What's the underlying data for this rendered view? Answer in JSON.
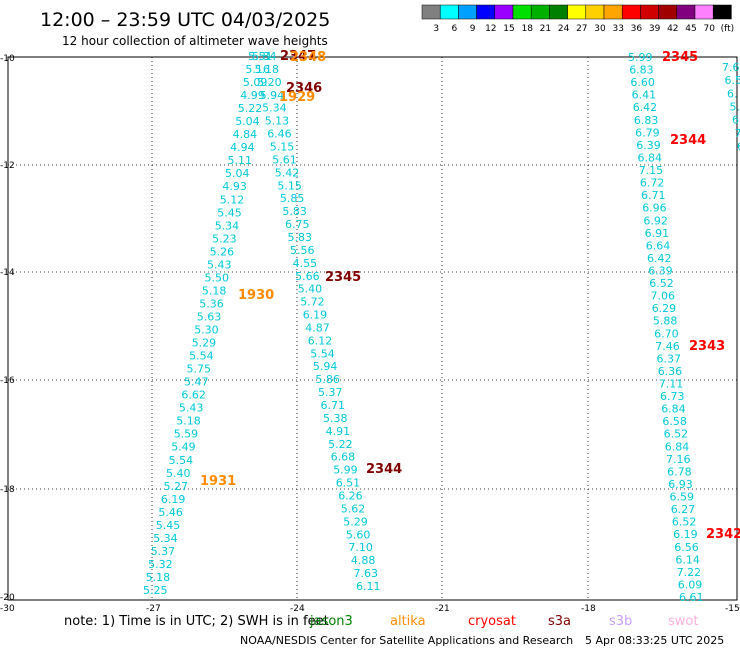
{
  "header": {
    "title": "12:00 – 23:59 UTC 04/03/2025",
    "subtitle": "12 hour collection of altimeter wave heights"
  },
  "color_scale": {
    "labels": [
      "3",
      "6",
      "9",
      "12",
      "15",
      "18",
      "21",
      "24",
      "27",
      "30",
      "33",
      "36",
      "39",
      "42",
      "45",
      "70",
      "(ft)"
    ],
    "colors": [
      "#808080",
      "#00ffff",
      "#00a0ff",
      "#0000ff",
      "#9900ff",
      "#00e000",
      "#00b000",
      "#008000",
      "#ffff00",
      "#ffd000",
      "#ffa500",
      "#ff0000",
      "#d00000",
      "#a00000",
      "#800080",
      "#ff80ff",
      "#000000"
    ]
  },
  "axes": {
    "lat_ticks": [
      "-10",
      "-12",
      "-14",
      "-16",
      "-18",
      "-20"
    ],
    "lon_ticks": [
      "-30",
      "-27",
      "-24",
      "-21",
      "-18",
      "-15"
    ]
  },
  "note": "note:  1) Time is in UTC; 2) SWH is in feet",
  "missions": [
    {
      "name": "jason3",
      "color": "#008000"
    },
    {
      "name": "altika",
      "color": "#ff8c00"
    },
    {
      "name": "cryosat",
      "color": "#ff0000"
    },
    {
      "name": "s3a",
      "color": "#800000"
    },
    {
      "name": "s3b",
      "color": "#c8a0ff"
    },
    {
      "name": "swot",
      "color": "#ffb0e0"
    }
  ],
  "credit": "NOAA/NESDIS Center for Satellite Applications and Research",
  "timestamp": "5 Apr 08:33:25 UTC 2025",
  "pass_colors": {
    "altika": "#ff8c00",
    "cryosat": "#ff0000",
    "s3a": "#800000",
    "point": "#00c8d8"
  },
  "passes": [
    {
      "label": "2347",
      "mission": "s3a"
    },
    {
      "label": "2348",
      "mission": "altika"
    },
    {
      "label": "2346",
      "mission": "s3a"
    },
    {
      "label": "1929",
      "mission": "altika"
    },
    {
      "label": "2345",
      "mission": "s3a"
    },
    {
      "label": "1930",
      "mission": "altika"
    },
    {
      "label": "2344",
      "mission": "s3a"
    },
    {
      "label": "1931",
      "mission": "altika"
    },
    {
      "label": "2345",
      "mission": "cryosat"
    },
    {
      "label": "2344",
      "mission": "cryosat"
    },
    {
      "label": "2343",
      "mission": "cryosat"
    },
    {
      "label": "2342",
      "mission": "cryosat"
    }
  ],
  "track_a": [
    "5.51",
    "5.16",
    "5.09",
    "4.99",
    "5.22",
    "5.04",
    "4.84",
    "4.94",
    "5.11",
    "5.04",
    "4.93",
    "5.12",
    "5.45",
    "5.34",
    "5.23",
    "5.26",
    "5.43",
    "5.50",
    "5.18",
    "5.36",
    "5.63",
    "5.30",
    "5.29",
    "5.54",
    "5.75",
    "5.47",
    "6.62",
    "5.43",
    "5.18",
    "5.59",
    "5.49",
    "5.54",
    "5.40",
    "5.27",
    "6.19",
    "5.46",
    "5.45",
    "5.34",
    "5.37",
    "5.32",
    "5.18",
    "5.25"
  ],
  "track_b": [
    "5.84",
    "5.18",
    "5.20",
    "5.94",
    "5.34",
    "5.13",
    "6.46",
    "5.15",
    "5.61",
    "5.42",
    "5.15",
    "5.85",
    "5.83",
    "6.75",
    "5.83",
    "5.56",
    "4.55",
    "5.66",
    "5.40",
    "5.72",
    "6.19",
    "4.87",
    "6.12",
    "5.54",
    "5.94",
    "5.86",
    "5.37",
    "6.71",
    "5.38",
    "4.91",
    "5.22",
    "6.68",
    "5.99",
    "6.51",
    "6.26",
    "5.62",
    "5.29",
    "5.60",
    "7.10",
    "4.88",
    "7.63",
    "6.11"
  ],
  "track_c": [
    "5.99",
    "6.83",
    "6.60",
    "6.41",
    "6.42",
    "6.83",
    "6.79",
    "6.39",
    "6.84",
    "7.15",
    "6.72",
    "6.71",
    "6.96",
    "6.92",
    "6.91",
    "6.64",
    "6.42",
    "6.39",
    "6.52",
    "7.06",
    "6.29",
    "5.88",
    "6.70",
    "7.46",
    "6.37",
    "6.36",
    "7.11",
    "6.73",
    "6.84",
    "6.58",
    "6.52",
    "6.84",
    "7.16",
    "6.78",
    "6.93",
    "6.59",
    "6.27",
    "6.52",
    "6.19",
    "6.56",
    "6.14",
    "7.22",
    "6.09",
    "6.61"
  ],
  "track_d": [
    "7.60",
    "6.5",
    "6.",
    "5.",
    "6.",
    "7",
    "6"
  ]
}
